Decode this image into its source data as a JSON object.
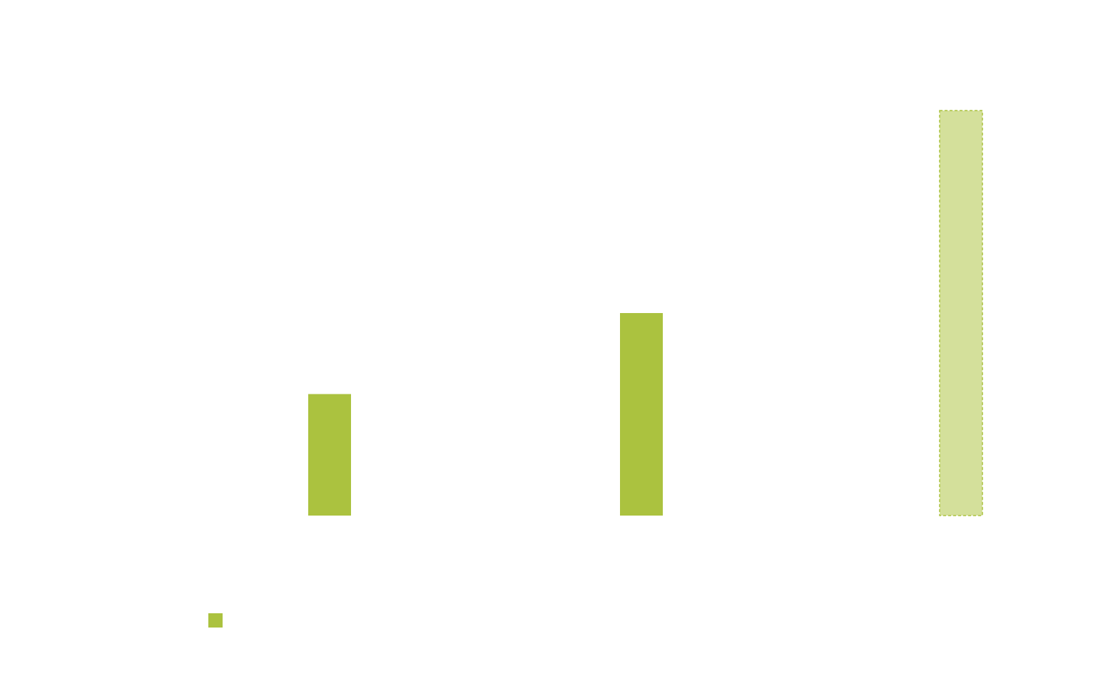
{
  "chart_data": {
    "type": "bar",
    "categories": [
      "",
      "",
      ""
    ],
    "values": [
      30,
      50,
      100
    ],
    "styles": [
      "solid",
      "solid",
      "dashed-light"
    ],
    "ylim": [
      0,
      100
    ],
    "grid": false,
    "title": "",
    "xlabel": "",
    "ylabel": "",
    "legend": {
      "placement": "bottom-left",
      "entries": [
        ""
      ]
    },
    "colors": {
      "bar": "#abc23f",
      "bar_light_fill": "#d4e09b",
      "bar_light_stroke": "#abc23f"
    }
  }
}
